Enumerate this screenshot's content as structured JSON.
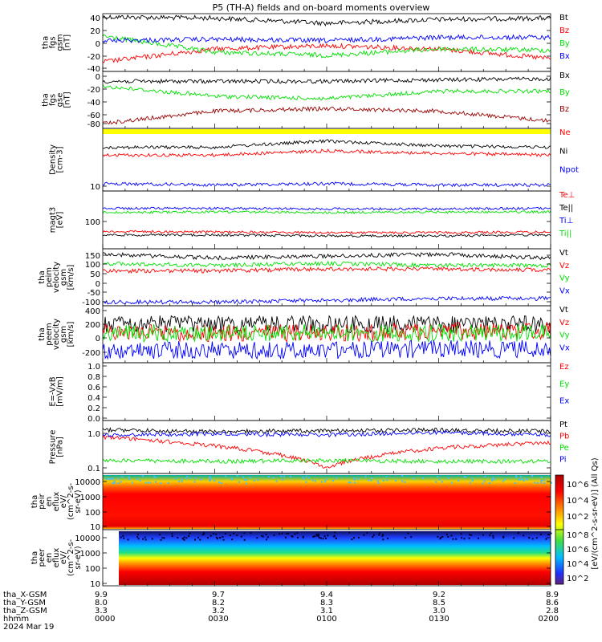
{
  "title": "P5 (TH-A) fields and on-board moments overview",
  "colors": {
    "black": "#000000",
    "red": "#ff0000",
    "green": "#00e000",
    "blue": "#0000ff",
    "darkred": "#990000",
    "yellow": "#ffff00"
  },
  "panels": [
    {
      "id": "fgs-gsm",
      "ylabel": [
        "tha",
        "fgs",
        "gsm",
        "[nT]"
      ],
      "yticks": [
        40,
        20,
        0,
        -20,
        -40
      ],
      "legend": [
        {
          "text": "Bt",
          "color": "#000000"
        },
        {
          "text": "Bz",
          "color": "#ff0000"
        },
        {
          "text": "By",
          "color": "#00e000"
        },
        {
          "text": "Bx",
          "color": "#0000ff"
        }
      ]
    },
    {
      "id": "fgs-gse",
      "ylabel": [
        "tha",
        "fgs",
        "gse",
        "[nT]"
      ],
      "yticks": [
        0,
        -20,
        -40,
        -60,
        -80
      ],
      "legend": [
        {
          "text": "Bx",
          "color": "#000000"
        },
        {
          "text": "By",
          "color": "#00e000"
        },
        {
          "text": "Bz",
          "color": "#990000"
        }
      ]
    },
    {
      "id": "density",
      "ylabel": [
        "Density",
        "[cm-3]"
      ],
      "yticks": [
        10
      ],
      "legend": [
        {
          "text": "Ne",
          "color": "#ff0000"
        },
        {
          "text": "Ni",
          "color": "#000000"
        },
        {
          "text": "Npot",
          "color": "#0000ff"
        }
      ]
    },
    {
      "id": "temperature",
      "ylabel": [
        "magt3",
        "[eV]"
      ],
      "yticks": [
        100
      ],
      "legend": [
        {
          "text": "Te⊥",
          "color": "#ff0000"
        },
        {
          "text": "Te||",
          "color": "#000000"
        },
        {
          "text": "Ti⊥",
          "color": "#0000ff"
        },
        {
          "text": "Ti||",
          "color": "#00e000"
        }
      ]
    },
    {
      "id": "peim-velocity",
      "ylabel": [
        "tha",
        "peim",
        "velocity",
        "gsm",
        "[km/s]"
      ],
      "yticks": [
        150,
        100,
        50,
        0,
        -50,
        -100
      ],
      "legend": [
        {
          "text": "Vt",
          "color": "#000000"
        },
        {
          "text": "Vz",
          "color": "#ff0000"
        },
        {
          "text": "Vy",
          "color": "#00e000"
        },
        {
          "text": "Vx",
          "color": "#0000ff"
        }
      ]
    },
    {
      "id": "peem-velocity",
      "ylabel": [
        "tha",
        "peem",
        "velocity",
        "gsm",
        "[km/s]"
      ],
      "yticks": [
        400,
        200,
        0,
        -200
      ],
      "legend": [
        {
          "text": "Vt",
          "color": "#000000"
        },
        {
          "text": "Vz",
          "color": "#ff0000"
        },
        {
          "text": "Vy",
          "color": "#00e000"
        },
        {
          "text": "Vx",
          "color": "#0000ff"
        }
      ]
    },
    {
      "id": "efield",
      "ylabel": [
        "E=-VxB",
        "[mV/m]"
      ],
      "yticks": [
        "1.0",
        "0.8",
        "0.6",
        "0.4",
        "0.2",
        "0.0"
      ],
      "legend": [
        {
          "text": "Ez",
          "color": "#ff0000"
        },
        {
          "text": "Ey",
          "color": "#00e000"
        },
        {
          "text": "Ex",
          "color": "#0000ff"
        }
      ]
    },
    {
      "id": "pressure",
      "ylabel": [
        "Pressure",
        "[nPa]"
      ],
      "yticks": [
        "1.0",
        "0.1"
      ],
      "legend": [
        {
          "text": "Pt",
          "color": "#000000"
        },
        {
          "text": "Pb",
          "color": "#ff0000"
        },
        {
          "text": "Pe",
          "color": "#00e000"
        },
        {
          "text": "Pi",
          "color": "#0000ff"
        }
      ]
    },
    {
      "id": "peir-spec",
      "ylabel": [
        "tha",
        "peir",
        "en",
        "eflux",
        "eV/",
        "(cm^2-s-",
        "sr-eV)"
      ],
      "yticks": [
        "10000",
        "1000",
        "100",
        "10"
      ]
    },
    {
      "id": "peer-spec",
      "ylabel": [
        "tha",
        "peer",
        "en",
        "eflux",
        "eV/",
        "(cm^2-s-",
        "sr-eV)"
      ],
      "yticks": [
        "10000",
        "1000",
        "100",
        "10"
      ]
    }
  ],
  "colorbar": {
    "label": "[eV/(cm^2-s-sr-eV)] (All Qs)",
    "ticks_top": [
      "10^6",
      "10^4",
      "10^2"
    ],
    "ticks_bottom": [
      "10^8",
      "10^6",
      "10^4",
      "10^2"
    ]
  },
  "x_axis": {
    "row_labels": [
      "tha_X-GSM",
      "tha_Y-GSM",
      "tha_Z-GSM",
      "hhmm",
      "2024 Mar 19"
    ],
    "ticks": [
      {
        "hhmm": "0000",
        "x": "9.9",
        "y": "8.0",
        "z": "3.3"
      },
      {
        "hhmm": "0030",
        "x": "9.7",
        "y": "8.2",
        "z": "3.2"
      },
      {
        "hhmm": "0100",
        "x": "9.4",
        "y": "8.3",
        "z": "3.1"
      },
      {
        "hhmm": "0130",
        "x": "9.2",
        "y": "8.5",
        "z": "3.0"
      },
      {
        "hhmm": "0200",
        "x": "8.9",
        "y": "8.6",
        "z": "2.8"
      }
    ]
  },
  "chart_data": [
    {
      "type": "line",
      "title": "P5 (TH-A) fields and on-board moments overview",
      "ylabel": "tha fgs gsm [nT]",
      "xlabel": "hhmm",
      "x": [
        "0000",
        "0030",
        "0100",
        "0130",
        "0200"
      ],
      "ylim": [
        -45,
        45
      ],
      "series": [
        {
          "name": "Bt",
          "color": "#000000",
          "values": [
            40,
            38,
            30,
            36,
            38
          ]
        },
        {
          "name": "Bz",
          "color": "#ff0000",
          "values": [
            -30,
            -10,
            -5,
            -10,
            -25
          ]
        },
        {
          "name": "By",
          "color": "#00e000",
          "values": [
            10,
            -15,
            -20,
            -10,
            -12
          ]
        },
        {
          "name": "Bx",
          "color": "#0000ff",
          "values": [
            3,
            5,
            3,
            8,
            8
          ]
        }
      ]
    },
    {
      "type": "line",
      "ylabel": "tha fgs gse [nT]",
      "x": [
        "0000",
        "0030",
        "0100",
        "0130",
        "0200"
      ],
      "ylim": [
        -90,
        25
      ],
      "series": [
        {
          "name": "Bx",
          "color": "#000000",
          "values": [
            5,
            5,
            5,
            8,
            10
          ]
        },
        {
          "name": "By",
          "color": "#00e000",
          "values": [
            -5,
            -25,
            -30,
            -15,
            -15
          ]
        },
        {
          "name": "Bz",
          "color": "#990000",
          "values": [
            -80,
            -55,
            -50,
            -55,
            -75
          ]
        }
      ]
    },
    {
      "type": "line",
      "ylabel": "Density [cm-3]",
      "scale": "log",
      "x": [
        "0000",
        "0030",
        "0100",
        "0130",
        "0200"
      ],
      "ylim": [
        8,
        80
      ],
      "series": [
        {
          "name": "Ne",
          "color": "#ff0000",
          "values": [
            30,
            30,
            35,
            32,
            30
          ]
        },
        {
          "name": "Ni",
          "color": "#000000",
          "values": [
            40,
            40,
            50,
            42,
            40
          ]
        },
        {
          "name": "Npot",
          "color": "#0000ff",
          "values": [
            10.5,
            10,
            10.5,
            10,
            10
          ]
        }
      ]
    },
    {
      "type": "line",
      "ylabel": "magt3 [eV]",
      "scale": "log",
      "x": [
        "0000",
        "0030",
        "0100",
        "0130",
        "0200"
      ],
      "ylim": [
        10,
        1000
      ],
      "series": [
        {
          "name": "Te⊥",
          "color": "#ff0000",
          "values": [
            40,
            38,
            36,
            36,
            38
          ]
        },
        {
          "name": "Te||",
          "color": "#000000",
          "values": [
            30,
            30,
            28,
            28,
            30
          ]
        },
        {
          "name": "Ti⊥",
          "color": "#0000ff",
          "values": [
            250,
            250,
            240,
            240,
            250
          ]
        },
        {
          "name": "Ti||",
          "color": "#00e000",
          "values": [
            180,
            190,
            180,
            185,
            190
          ]
        }
      ]
    },
    {
      "type": "line",
      "ylabel": "tha peim velocity gsm [km/s]",
      "x": [
        "0000",
        "0030",
        "0100",
        "0130",
        "0200"
      ],
      "ylim": [
        -130,
        180
      ],
      "series": [
        {
          "name": "Vt",
          "color": "#000000",
          "values": [
            150,
            130,
            140,
            150,
            130
          ]
        },
        {
          "name": "Vz",
          "color": "#ff0000",
          "values": [
            60,
            60,
            70,
            70,
            65
          ]
        },
        {
          "name": "Vy",
          "color": "#00e000",
          "values": [
            100,
            90,
            100,
            90,
            90
          ]
        },
        {
          "name": "Vx",
          "color": "#0000ff",
          "values": [
            -110,
            -110,
            -100,
            -90,
            -90
          ]
        }
      ]
    },
    {
      "type": "line",
      "ylabel": "tha peem velocity gsm [km/s]",
      "x": [
        "0000",
        "0030",
        "0100",
        "0130",
        "0200"
      ],
      "ylim": [
        -250,
        420
      ],
      "series": [
        {
          "name": "Vt",
          "color": "#000000",
          "values": [
            200,
            200,
            200,
            200,
            200
          ]
        },
        {
          "name": "Vz",
          "color": "#ff0000",
          "values": [
            100,
            100,
            100,
            120,
            120
          ]
        },
        {
          "name": "Vy",
          "color": "#00e000",
          "values": [
            100,
            100,
            100,
            100,
            100
          ]
        },
        {
          "name": "Vx",
          "color": "#0000ff",
          "values": [
            -100,
            -100,
            -100,
            -90,
            -90
          ]
        }
      ]
    },
    {
      "type": "line",
      "ylabel": "E=-VxB [mV/m]",
      "x": [
        "0000",
        "0030",
        "0100",
        "0130",
        "0200"
      ],
      "ylim": [
        0,
        1.05
      ],
      "series": []
    },
    {
      "type": "line",
      "ylabel": "Pressure [nPa]",
      "scale": "log",
      "x": [
        "0000",
        "0030",
        "0100",
        "0130",
        "0200"
      ],
      "ylim": [
        0.07,
        2
      ],
      "series": [
        {
          "name": "Pt",
          "color": "#000000",
          "values": [
            1.1,
            1.0,
            1.05,
            1.1,
            1.0
          ]
        },
        {
          "name": "Pb",
          "color": "#ff0000",
          "values": [
            0.7,
            0.4,
            0.1,
            0.35,
            0.5
          ]
        },
        {
          "name": "Pe",
          "color": "#00e000",
          "values": [
            0.16,
            0.15,
            0.16,
            0.15,
            0.15
          ]
        },
        {
          "name": "Pi",
          "color": "#0000ff",
          "values": [
            0.8,
            0.85,
            0.8,
            0.95,
            0.8
          ]
        }
      ]
    },
    {
      "type": "heatmap",
      "ylabel": "tha peir en eflux eV/(cm^2-s-sr-eV)",
      "scale": "log",
      "x": [
        "0000",
        "0030",
        "0100",
        "0130",
        "0200"
      ],
      "ylim": [
        8,
        20000
      ]
    },
    {
      "type": "heatmap",
      "ylabel": "tha peer en eflux eV/(cm^2-s-sr-eV)",
      "scale": "log",
      "x": [
        "0000",
        "0030",
        "0100",
        "0130",
        "0200"
      ],
      "ylim": [
        8,
        20000
      ]
    }
  ]
}
